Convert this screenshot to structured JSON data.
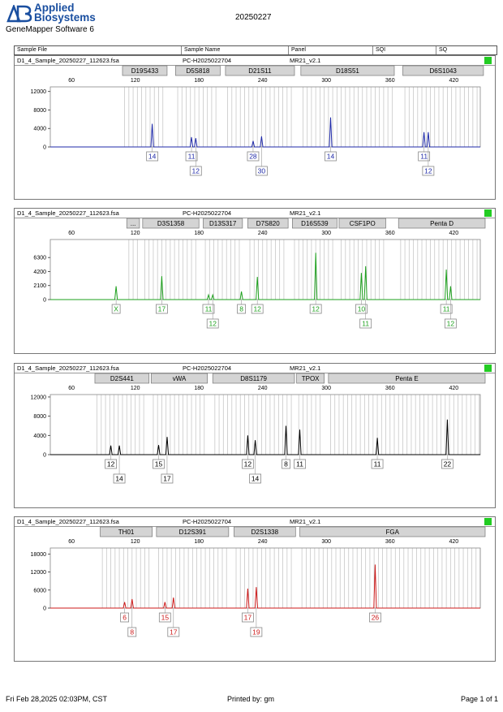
{
  "header": {
    "brand_line1": "Applied",
    "brand_line2": "Biosystems",
    "software": "GeneMapper Software 6",
    "date": "20250227"
  },
  "columns": [
    "Sample File",
    "Sample Name",
    "Panel",
    "SQI",
    "SQ"
  ],
  "sample": {
    "file": "D1_4_Sample_20250227_112623.fsa",
    "name": "PC-H2025022704",
    "panel": "MR21_v2.1"
  },
  "colors": {
    "blue": "#1f2aa8",
    "green": "#1ea01e",
    "black": "#000000",
    "red": "#cc1a1a",
    "quality": "#22cc22"
  },
  "footer": {
    "printed_at": "Fri Feb 28,2025 02:03PM, CST",
    "printed_by": "Printed by: gm",
    "page": "Page 1 of 1"
  },
  "chart_data": [
    {
      "type": "line",
      "dye": "blue",
      "xlim": [
        40,
        445
      ],
      "xticks": [
        60,
        120,
        180,
        240,
        300,
        360,
        420
      ],
      "ylim": [
        0,
        13000
      ],
      "yticks": [
        0,
        4000,
        8000,
        12000
      ],
      "loci": [
        {
          "name": "D19S433",
          "start": 108,
          "end": 150
        },
        {
          "name": "D5S818",
          "start": 158,
          "end": 200
        },
        {
          "name": "D21S11",
          "start": 205,
          "end": 270
        },
        {
          "name": "D18S51",
          "start": 276,
          "end": 364
        },
        {
          "name": "D6S1043",
          "start": 372,
          "end": 448
        }
      ],
      "peaks": [
        {
          "x": 136,
          "h": 5000,
          "allele": "14"
        },
        {
          "x": 173,
          "h": 2100,
          "allele": "11"
        },
        {
          "x": 177,
          "h": 1900,
          "allele": "12"
        },
        {
          "x": 231,
          "h": 1300,
          "allele": "28"
        },
        {
          "x": 239,
          "h": 2300,
          "allele": "30"
        },
        {
          "x": 304,
          "h": 6400,
          "allele": "14"
        },
        {
          "x": 392,
          "h": 3200,
          "allele": "11"
        },
        {
          "x": 396,
          "h": 3200,
          "allele": "12"
        }
      ]
    },
    {
      "type": "line",
      "dye": "green",
      "xlim": [
        40,
        445
      ],
      "xticks": [
        60,
        120,
        180,
        240,
        300,
        360,
        420
      ],
      "ylim": [
        0,
        9000
      ],
      "yticks": [
        0,
        2100,
        4200,
        6300
      ],
      "loci": [
        {
          "name": "...",
          "start": 112,
          "end": 124
        },
        {
          "name": "D3S1358",
          "start": 127,
          "end": 180
        },
        {
          "name": "D13S317",
          "start": 184,
          "end": 221
        },
        {
          "name": "D7S820",
          "start": 226,
          "end": 264
        },
        {
          "name": "D16S539",
          "start": 268,
          "end": 310
        },
        {
          "name": "CSF1PO",
          "start": 312,
          "end": 356
        },
        {
          "name": "Penta D",
          "start": 368,
          "end": 452
        }
      ],
      "peaks": [
        {
          "x": 102,
          "h": 2000,
          "allele": "X"
        },
        {
          "x": 145,
          "h": 3500,
          "allele": "17"
        },
        {
          "x": 189,
          "h": 700,
          "allele": "11"
        },
        {
          "x": 193,
          "h": 700,
          "allele": "12"
        },
        {
          "x": 220,
          "h": 1200,
          "allele": "8"
        },
        {
          "x": 235,
          "h": 3400,
          "allele": "12"
        },
        {
          "x": 290,
          "h": 7000,
          "allele": "12"
        },
        {
          "x": 333,
          "h": 4000,
          "allele": "10"
        },
        {
          "x": 337,
          "h": 5000,
          "allele": "11"
        },
        {
          "x": 413,
          "h": 4500,
          "allele": "11"
        },
        {
          "x": 417,
          "h": 2000,
          "allele": "12"
        }
      ]
    },
    {
      "type": "line",
      "dye": "black",
      "xlim": [
        40,
        445
      ],
      "xticks": [
        60,
        120,
        180,
        240,
        300,
        360,
        420
      ],
      "ylim": [
        0,
        12500
      ],
      "yticks": [
        0,
        4000,
        8000,
        12000
      ],
      "loci": [
        {
          "name": "D2S441",
          "start": 82,
          "end": 133
        },
        {
          "name": "vWA",
          "start": 135,
          "end": 188
        },
        {
          "name": "D8S1179",
          "start": 193,
          "end": 270
        },
        {
          "name": "TPOX",
          "start": 272,
          "end": 298
        },
        {
          "name": "Penta E",
          "start": 302,
          "end": 458
        }
      ],
      "peaks": [
        {
          "x": 97,
          "h": 1900,
          "allele": "12"
        },
        {
          "x": 105,
          "h": 1900,
          "allele": "14"
        },
        {
          "x": 142,
          "h": 2000,
          "allele": "15"
        },
        {
          "x": 150,
          "h": 3700,
          "allele": "17"
        },
        {
          "x": 226,
          "h": 4000,
          "allele": "12"
        },
        {
          "x": 233,
          "h": 3000,
          "allele": "14"
        },
        {
          "x": 262,
          "h": 6000,
          "allele": "8"
        },
        {
          "x": 275,
          "h": 5200,
          "allele": "11"
        },
        {
          "x": 348,
          "h": 3500,
          "allele": "11"
        },
        {
          "x": 414,
          "h": 7300,
          "allele": "22"
        }
      ]
    },
    {
      "type": "line",
      "dye": "red",
      "xlim": [
        40,
        445
      ],
      "xticks": [
        60,
        120,
        180,
        240,
        300,
        360,
        420
      ],
      "ylim": [
        0,
        20000
      ],
      "yticks": [
        0,
        6000,
        12000,
        18000
      ],
      "loci": [
        {
          "name": "TH01",
          "start": 87,
          "end": 136
        },
        {
          "name": "D12S391",
          "start": 140,
          "end": 208
        },
        {
          "name": "D2S1338",
          "start": 213,
          "end": 271
        },
        {
          "name": "FGA",
          "start": 275,
          "end": 468
        }
      ],
      "peaks": [
        {
          "x": 110,
          "h": 2000,
          "allele": "6"
        },
        {
          "x": 117,
          "h": 3000,
          "allele": "8"
        },
        {
          "x": 148,
          "h": 2000,
          "allele": "15"
        },
        {
          "x": 156,
          "h": 3500,
          "allele": "17"
        },
        {
          "x": 226,
          "h": 6500,
          "allele": "17"
        },
        {
          "x": 234,
          "h": 7000,
          "allele": "19"
        },
        {
          "x": 346,
          "h": 14500,
          "allele": "26"
        }
      ]
    }
  ]
}
